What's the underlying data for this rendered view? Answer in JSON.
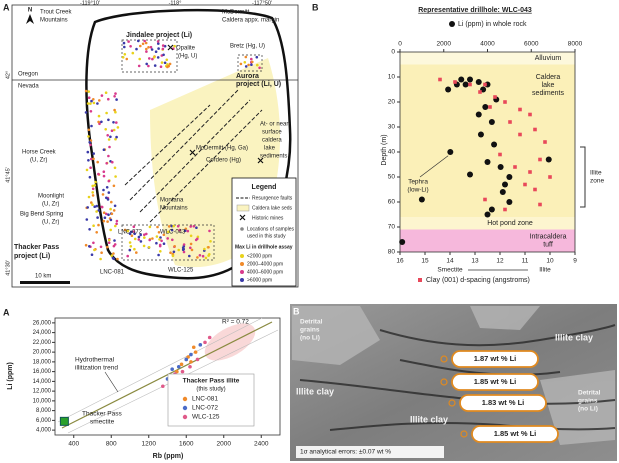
{
  "map": {
    "panel": "A",
    "north": "N",
    "lon_labels": [
      "-119°10'",
      "-118°",
      "-117°50'"
    ],
    "lat_labels": [
      "42°",
      "41°45'",
      "41°30'"
    ],
    "labels": [
      "Trout Creek",
      "Mountains",
      "McDermitt",
      "Caldera appx. margin",
      "Jindalee project (Li)",
      "Opalite",
      "(Hg, U)",
      "Bretz (Hg, U)",
      "Aurora",
      "project (Li, U)",
      "Oregon",
      "Nevada",
      "Horse Creek",
      "(U, Zr)",
      "McDermitt (Hg, Ga)",
      "Cordero (Hg)",
      "At- or near-",
      "surface",
      "caldera",
      "lake",
      "sediments",
      "Moonlight",
      "(U, Zr)",
      "Montana",
      "Mountains",
      "Big Bend Spring",
      "(U, Zr)",
      "LNC-072",
      "WLC-043",
      "LNC-081",
      "WLC-125",
      "Thacker Pass",
      "project (Li)",
      "10 km"
    ],
    "legend": {
      "title": "Legend",
      "faults": "Resurgence faults",
      "lake": "Caldera lake seds",
      "mines": "Historic mines",
      "samples": [
        "Locations of samples",
        "used in this study"
      ],
      "li_title": "Max Li in drillhole assay",
      "li_classes": [
        {
          "name": "<2000 ppm",
          "color": "#e8d21a"
        },
        {
          "name": "2000–4000 ppm",
          "color": "#f08a2a"
        },
        {
          "name": "4000–6000 ppm",
          "color": "#d83a8c"
        },
        {
          "name": ">6000 ppm",
          "color": "#3a3aa8"
        }
      ]
    }
  },
  "chart_data": [
    {
      "type": "scatter",
      "panel": "B",
      "title": "Representative drillhole: WLC-043",
      "ylabel": "Depth (m)",
      "ylim": [
        0,
        80
      ],
      "yticks": [
        0,
        10,
        20,
        30,
        40,
        50,
        60,
        70,
        80
      ],
      "xlim": [
        0,
        8000
      ],
      "xticks": [
        0,
        2000,
        4000,
        6000,
        8000
      ],
      "x2lim": [
        16,
        9
      ],
      "x2ticks": [
        16,
        15,
        14,
        13,
        12,
        11,
        10,
        9
      ],
      "x2labels": [
        "Smectite",
        "Illite"
      ],
      "units": [
        {
          "lines": [
            "Alluvium"
          ],
          "top": 0,
          "bottom": 5,
          "color": "#fdf8dc"
        },
        {
          "lines": [
            "Caldera",
            "lake",
            "sediments"
          ],
          "top": 5,
          "bottom": 66,
          "color": "#fbf0b8"
        },
        {
          "lines": [
            "Hot pond zone"
          ],
          "top": 66,
          "bottom": 71,
          "color": "#fdf5cf"
        },
        {
          "lines": [
            "Intracaldera",
            "tuff"
          ],
          "top": 71,
          "bottom": 80,
          "color": "#f6b8dc"
        }
      ],
      "illite_zone": {
        "lines": [
          "Illite",
          "zone"
        ],
        "top": 38,
        "bottom": 62
      },
      "tephra": [
        "Tephra",
        "(low-Li)"
      ],
      "series": [
        {
          "name": "Li (ppm) in whole rock",
          "color": "#111111",
          "axis": "x",
          "x": [
            2200,
            2600,
            2800,
            3200,
            3000,
            3600,
            4000,
            3800,
            4400,
            3900,
            3600,
            4200,
            3700,
            4300,
            2300,
            4000,
            6800,
            4600,
            3200,
            5000,
            4800,
            4700,
            1000,
            5000,
            4200,
            4000,
            100
          ],
          "values": [
            15,
            13,
            11,
            11,
            13,
            12,
            13,
            15,
            19,
            22,
            25,
            28,
            33,
            37,
            40,
            44,
            43,
            46,
            49,
            50,
            53,
            56,
            59,
            60,
            63,
            65,
            76
          ]
        },
        {
          "name": "Clay (001) d-spacing (angstroms)",
          "color": "#e8485a",
          "axis": "x2",
          "x": [
            14.4,
            13.8,
            13.2,
            12.6,
            12.8,
            12.2,
            11.8,
            12.4,
            11.2,
            10.8,
            11.6,
            10.6,
            11.2,
            10.2,
            12.0,
            10.4,
            11.4,
            10.8,
            10.0,
            11.0,
            10.6,
            12.6,
            10.4,
            11.8
          ],
          "values": [
            11,
            12,
            13,
            13,
            16,
            18,
            20,
            22,
            23,
            25,
            28,
            31,
            33,
            36,
            41,
            43,
            46,
            48,
            50,
            53,
            55,
            59,
            61,
            63
          ]
        }
      ]
    },
    {
      "type": "scatter",
      "panel": "A",
      "xlabel": "Rb (ppm)",
      "ylabel": "Li (ppm)",
      "xlim": [
        200,
        2600
      ],
      "xticks": [
        400,
        800,
        1200,
        1600,
        2000,
        2400
      ],
      "ylim": [
        3000,
        27000
      ],
      "yticks": [
        {
          "value": 4000,
          "label": "4,000"
        },
        {
          "value": 6000,
          "label": "6,000"
        },
        {
          "value": 8000,
          "label": "8,000"
        },
        {
          "value": 10000,
          "label": "10,000"
        },
        {
          "value": 12000,
          "label": "12,000"
        },
        {
          "value": 14000,
          "label": "14,000"
        },
        {
          "value": 16000,
          "label": "16,000"
        },
        {
          "value": 18000,
          "label": "18,000"
        },
        {
          "value": 20000,
          "label": "20,000"
        },
        {
          "value": 22000,
          "label": "22,000"
        },
        {
          "value": 24000,
          "label": "24,000"
        },
        {
          "value": 26000,
          "label": "26,000"
        }
      ],
      "annotations": [
        "R² = 0.72",
        "Hydrothermal",
        "illitization trend",
        "Thacker Pass",
        "smectite"
      ],
      "legend_title": [
        "Thacker Pass illite",
        "(this study)"
      ],
      "series": [
        {
          "name": "Thacker Pass smectite",
          "color": "#2aa02a",
          "x": [
            300
          ],
          "values": [
            5800
          ],
          "marker": "square"
        },
        {
          "name": "LNC-081",
          "color": "#f08a2a",
          "x": [
            1500,
            1550,
            1600,
            1620,
            1650,
            1700,
            1580,
            1680
          ],
          "values": [
            16000,
            17500,
            18500,
            19000,
            18000,
            20000,
            15000,
            21000
          ]
        },
        {
          "name": "LNC-072",
          "color": "#4a6cc8",
          "x": [
            1400,
            1450,
            1520,
            1600,
            1650,
            1750
          ],
          "values": [
            14500,
            16500,
            17000,
            18500,
            19500,
            21500
          ]
        },
        {
          "name": "WLC-125",
          "color": "#e05a8a",
          "x": [
            1350,
            1480,
            1560,
            1640,
            1720,
            1800,
            1850
          ],
          "values": [
            13000,
            15500,
            16000,
            17000,
            18500,
            22000,
            23000
          ]
        }
      ]
    }
  ],
  "sem": {
    "panel": "B",
    "labels": [
      "Detrital",
      "grains",
      "(no Li)",
      "Illite clay",
      "Illite clay",
      "Illite clay",
      "Detrital",
      "grains",
      "(no Li)"
    ],
    "callouts": [
      "1.87 wt % Li",
      "1.85 wt % Li",
      "1.83 wt % Li",
      "1.85 wt % Li"
    ],
    "note": "1σ analytical errors: ±0.07 wt %"
  }
}
